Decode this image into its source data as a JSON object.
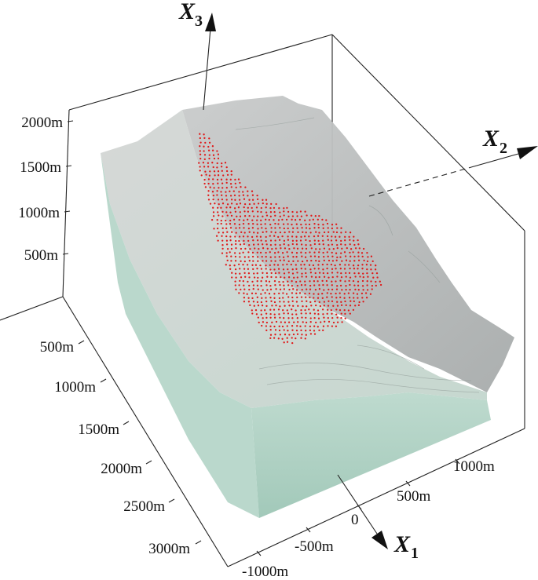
{
  "axes": {
    "x1": {
      "name": "X",
      "sub": "1"
    },
    "x2": {
      "name": "X",
      "sub": "2"
    },
    "x3": {
      "name": "X",
      "sub": "3"
    }
  },
  "vertical_ticks": [
    "2000m",
    "1500m",
    "1000m",
    "500m"
  ],
  "depth_ticks": [
    "500m",
    "1000m",
    "1500m",
    "2000m",
    "2500m",
    "3000m"
  ],
  "x1_ticks": [
    "1000m",
    "500m",
    "0",
    "-500m",
    "-1000m"
  ],
  "colors": {
    "block_front": "#a9cfc0",
    "block_top": "#c4ddd3",
    "terrain_gray": "#b9bcbc",
    "landslide_points": "#e01818"
  }
}
